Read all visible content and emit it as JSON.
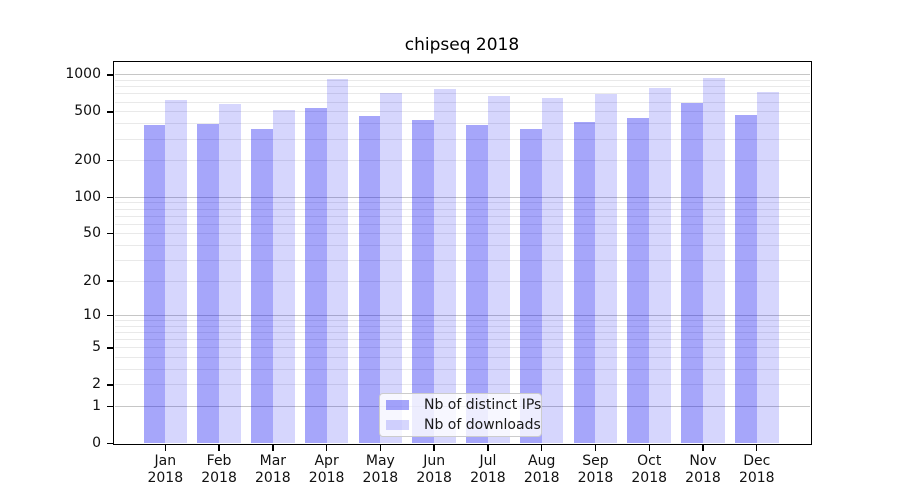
{
  "chart_data": {
    "type": "bar",
    "title": "chipseq 2018",
    "x": {
      "months": [
        "Jan",
        "Feb",
        "Mar",
        "Apr",
        "May",
        "Jun",
        "Jul",
        "Aug",
        "Sep",
        "Oct",
        "Nov",
        "Dec"
      ],
      "year": "2018"
    },
    "series": [
      {
        "name": "Nb of distinct IPs",
        "color": "rgba(0,0,240,0.35)",
        "values": [
          390,
          395,
          360,
          540,
          465,
          430,
          390,
          360,
          415,
          450,
          595,
          470
        ]
      },
      {
        "name": "Nb of downloads",
        "color": "rgba(0,0,240,0.16)",
        "values": [
          625,
          580,
          520,
          930,
          710,
          765,
          675,
          645,
          695,
          780,
          950,
          720
        ]
      }
    ],
    "yscale": "log1p",
    "ylim": [
      0,
      1276
    ],
    "y_ticks": [
      1000,
      500,
      200,
      100,
      50,
      20,
      10,
      5,
      2,
      1,
      0
    ],
    "grid": {
      "major_lines": [
        1,
        10,
        100,
        1000
      ],
      "minor_lines_pattern": "2-9 per decade",
      "major_color": "#c6c6c6",
      "minor_color": "#e9e9e9"
    },
    "legend": {
      "position": "lower center"
    },
    "frame_color": "#000000",
    "text_color": "#111111"
  }
}
